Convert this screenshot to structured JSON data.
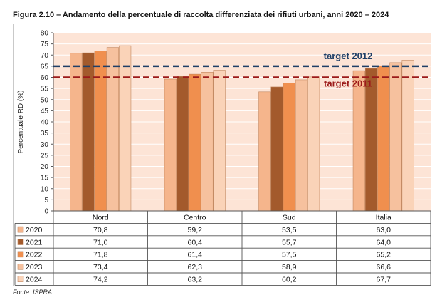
{
  "figure": {
    "title": "Figura 2.10 – Andamento della percentuale di raccolta differenziata dei rifiuti urbani, anni 2020 – 2024",
    "source": "Fonte: ISPRA"
  },
  "chart_data": {
    "type": "bar",
    "title": "",
    "xlabel": "",
    "ylabel": "Percentuale RD (%)",
    "ylim": [
      0,
      80
    ],
    "ytick_step": 5,
    "grid": true,
    "legend": "table",
    "categories": [
      "Nord",
      "Centro",
      "Sud",
      "Italia"
    ],
    "series": [
      {
        "name": "2020",
        "color": "#f5b58c",
        "values": [
          70.8,
          59.2,
          53.5,
          63.0
        ],
        "labels": [
          "70,8",
          "59,2",
          "53,5",
          "63,0"
        ]
      },
      {
        "name": "2021",
        "color": "#a35a2c",
        "values": [
          71.0,
          60.4,
          55.7,
          64.0
        ],
        "labels": [
          "71,0",
          "60,4",
          "55,7",
          "64,0"
        ]
      },
      {
        "name": "2022",
        "color": "#f08f4e",
        "values": [
          71.8,
          61.4,
          57.5,
          65.2
        ],
        "labels": [
          "71,8",
          "61,4",
          "57,5",
          "65,2"
        ]
      },
      {
        "name": "2023",
        "color": "#f6c19e",
        "values": [
          73.4,
          62.3,
          58.9,
          66.6
        ],
        "labels": [
          "73,4",
          "62,3",
          "58,9",
          "66,6"
        ]
      },
      {
        "name": "2024",
        "color": "#fad3b8",
        "values": [
          74.2,
          63.2,
          60.2,
          67.7
        ],
        "labels": [
          "74,2",
          "63,2",
          "60,2",
          "67,7"
        ]
      }
    ],
    "reference_lines": [
      {
        "label": "target 2012",
        "value": 65,
        "color": "#1f3f67"
      },
      {
        "label": "target 2011",
        "value": 60,
        "color": "#9c1a1a"
      }
    ],
    "plot_background": "#fde4d6"
  }
}
